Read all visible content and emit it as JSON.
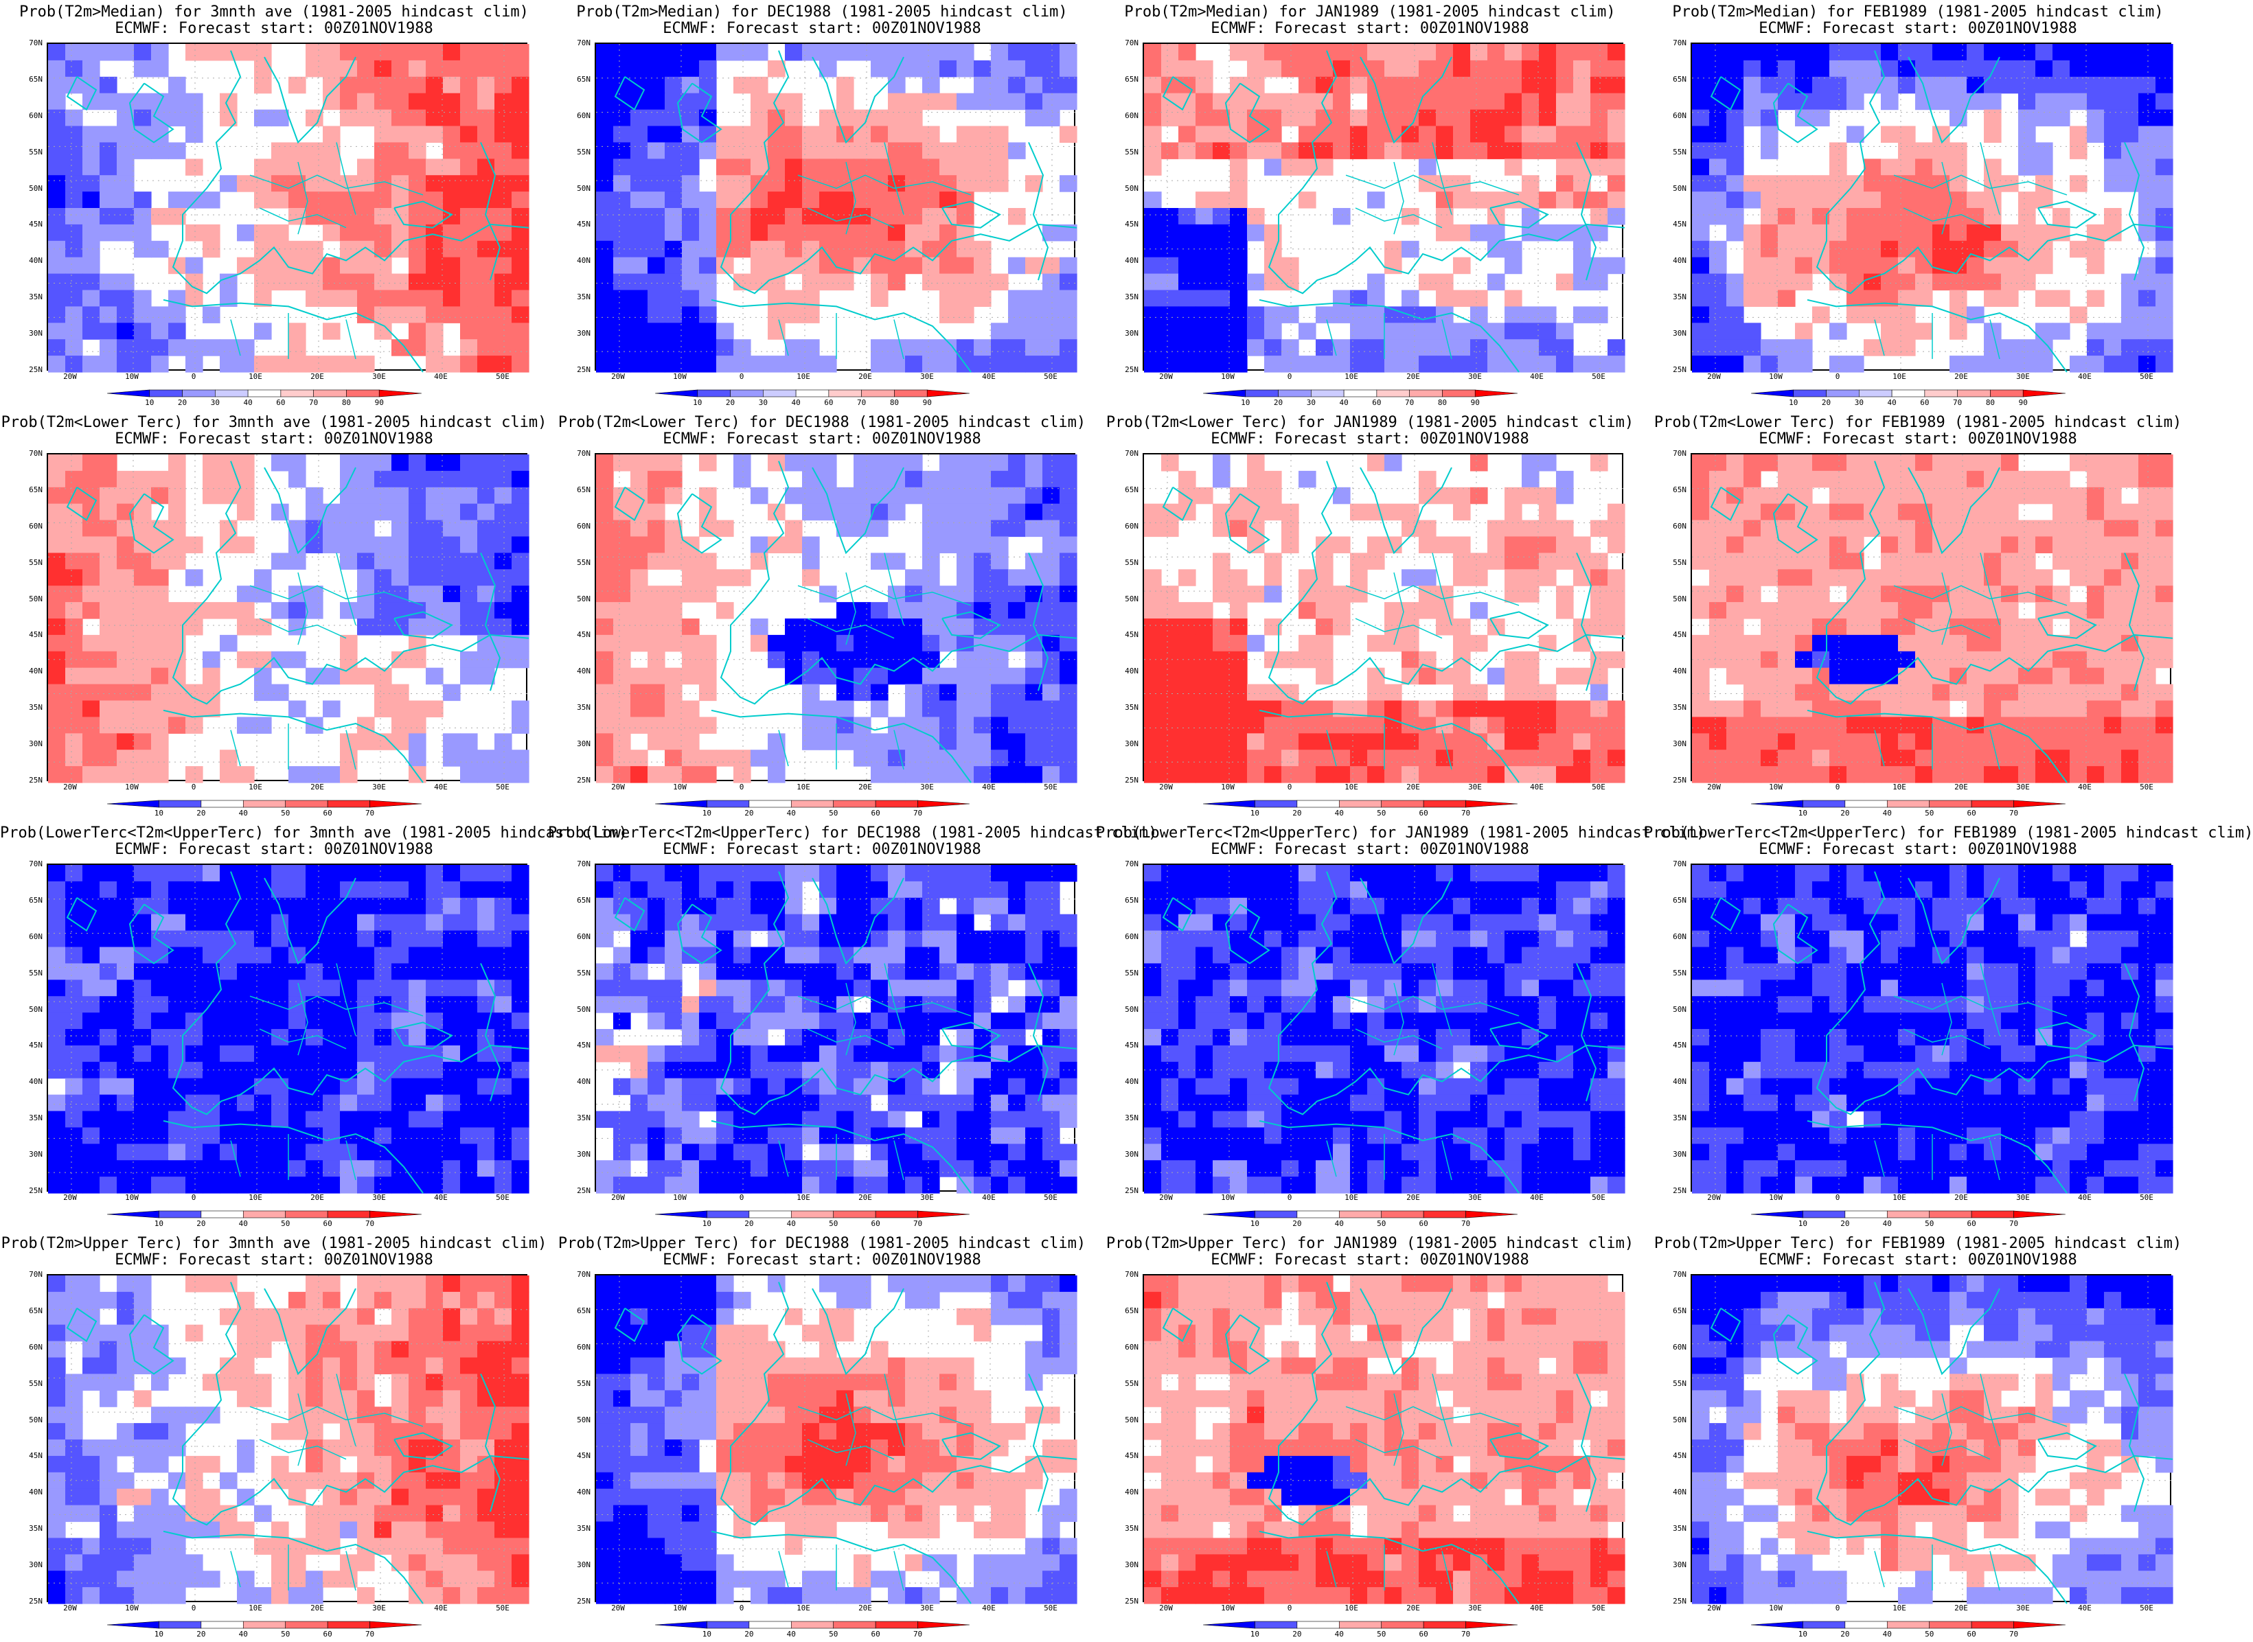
{
  "colors": {
    "blue_dark": "#0000ff",
    "blue_mid": "#5555ff",
    "blue_light": "#9999ff",
    "red_light": "#ffaaaa",
    "red_mid": "#ff7070",
    "red_dark": "#ff3030",
    "red_max": "#ff0000",
    "coast": "#00cccc",
    "grid": "#aaaaaa"
  },
  "axes": {
    "lat_labels": [
      "70N",
      "65N",
      "60N",
      "55N",
      "50N",
      "45N",
      "40N",
      "35N",
      "30N",
      "25N"
    ],
    "lon_labels": [
      "20W",
      "10W",
      "0",
      "10E",
      "20E",
      "30E",
      "40E",
      "50E"
    ]
  },
  "colorbars": {
    "median": [
      "10",
      "20",
      "30",
      "40",
      "60",
      "70",
      "80",
      "90"
    ],
    "tercile": [
      "10",
      "20",
      "40",
      "50",
      "60",
      "70"
    ]
  },
  "rows": [
    {
      "variable": "median",
      "panels": [
        {
          "title": "Prob(T2m>Median) for 3mnth ave (1981-2005 hindcast clim)",
          "subtitle": "ECMWF: Forecast start: 00Z01NOV1988",
          "pattern": "warm_east_cool_west"
        },
        {
          "title": "Prob(T2m>Median) for DEC1988 (1981-2005 hindcast clim)",
          "subtitle": "ECMWF: Forecast start: 00Z01NOV1988",
          "pattern": "warm_center_cold_west"
        },
        {
          "title": "Prob(T2m>Median) for JAN1989 (1981-2005 hindcast clim)",
          "subtitle": "ECMWF: Forecast start: 00Z01NOV1988",
          "pattern": "mixed_cold_southwest"
        },
        {
          "title": "Prob(T2m>Median) for FEB1989 (1981-2005 hindcast clim)",
          "subtitle": "ECMWF: Forecast start: 00Z01NOV1988",
          "pattern": "warm_center"
        }
      ]
    },
    {
      "variable": "lower_tercile",
      "panels": [
        {
          "title": "Prob(T2m<Lower Terc) for 3mnth ave (1981-2005 hindcast clim)",
          "subtitle": "ECMWF: Forecast start: 00Z01NOV1988",
          "pattern": "warm_west"
        },
        {
          "title": "Prob(T2m<Lower Terc) for DEC1988 (1981-2005 hindcast clim)",
          "subtitle": "ECMWF: Forecast start: 00Z01NOV1988",
          "pattern": "warm_west_cold_center"
        },
        {
          "title": "Prob(T2m<Lower Terc) for JAN1989 (1981-2005 hindcast clim)",
          "subtitle": "ECMWF: Forecast start: 00Z01NOV1988",
          "pattern": "warm_southwest"
        },
        {
          "title": "Prob(T2m<Lower Terc) for FEB1989 (1981-2005 hindcast clim)",
          "subtitle": "ECMWF: Forecast start: 00Z01NOV1988",
          "pattern": "pink_broad"
        }
      ]
    },
    {
      "variable": "middle_tercile",
      "panels": [
        {
          "title": "Prob(LowerTerc<T2m<UpperTerc) for 3mnth ave (1981-2005 hindcast clim)",
          "subtitle": "ECMWF: Forecast start: 00Z01NOV1988",
          "pattern": "blue_dominant"
        },
        {
          "title": "Prob(LowerTerc<T2m<UpperTerc) for DEC1988 (1981-2005 hindcast clim)",
          "subtitle": "ECMWF: Forecast start: 00Z01NOV1988",
          "pattern": "blue_holes"
        },
        {
          "title": "Prob(LowerTerc<T2m<UpperTerc) for JAN1989 (1981-2005 hindcast clim)",
          "subtitle": "ECMWF: Forecast start: 00Z01NOV1988",
          "pattern": "blue_dominant"
        },
        {
          "title": "Prob(LowerTerc<T2m<UpperTerc) for FEB1989 (1981-2005 hindcast clim)",
          "subtitle": "ECMWF: Forecast start: 00Z01NOV1988",
          "pattern": "blue_dominant"
        }
      ]
    },
    {
      "variable": "upper_tercile",
      "panels": [
        {
          "title": "Prob(T2m>Upper Terc) for 3mnth ave (1981-2005 hindcast clim)",
          "subtitle": "ECMWF: Forecast start: 00Z01NOV1988",
          "pattern": "warm_east_cool_west"
        },
        {
          "title": "Prob(T2m>Upper Terc) for DEC1988 (1981-2005 hindcast clim)",
          "subtitle": "ECMWF: Forecast start: 00Z01NOV1988",
          "pattern": "warm_center_cold_west"
        },
        {
          "title": "Prob(T2m>Upper Terc) for JAN1989 (1981-2005 hindcast clim)",
          "subtitle": "ECMWF: Forecast start: 00Z01NOV1988",
          "pattern": "pink_broad"
        },
        {
          "title": "Prob(T2m>Upper Terc) for FEB1989 (1981-2005 hindcast clim)",
          "subtitle": "ECMWF: Forecast start: 00Z01NOV1988",
          "pattern": "warm_center"
        }
      ]
    }
  ]
}
